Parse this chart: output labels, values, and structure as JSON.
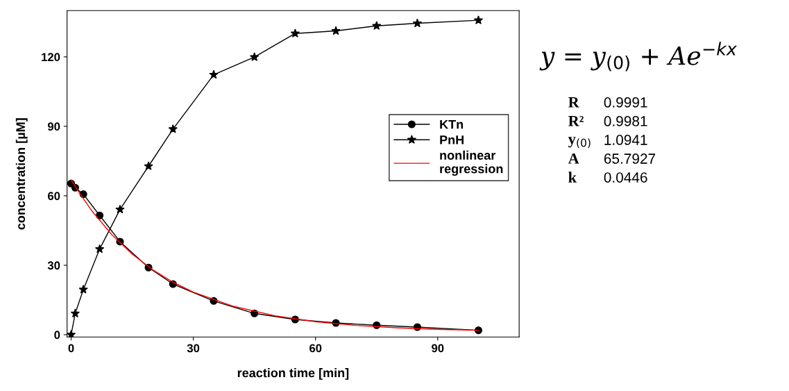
{
  "chart_data": {
    "type": "line",
    "xlabel": "reaction time [min]",
    "ylabel": "concentration [µM]",
    "xlim": [
      -1,
      110
    ],
    "xticks": [
      0,
      30,
      60,
      90
    ],
    "ylim": [
      -1,
      140
    ],
    "yticks": [
      0,
      30,
      60,
      90,
      120
    ],
    "grid": false,
    "legend": "right",
    "series": [
      {
        "name": "KTn",
        "color": "#000000",
        "marker": "circle",
        "x": [
          0,
          1,
          3,
          7,
          12,
          19,
          25,
          35,
          45,
          55,
          65,
          75,
          85,
          100
        ],
        "values": [
          65.3,
          63.5,
          60.7,
          51.5,
          40.2,
          29.0,
          21.9,
          14.6,
          9.2,
          6.6,
          5.1,
          4.1,
          3.3,
          1.9
        ]
      },
      {
        "name": "PnH",
        "color": "#000000",
        "marker": "star",
        "x": [
          0,
          1,
          3,
          7,
          12,
          19,
          25,
          35,
          45,
          55,
          65,
          75,
          85,
          100
        ],
        "values": [
          0.0,
          9.2,
          19.5,
          37.0,
          54.1,
          72.8,
          88.8,
          112.3,
          119.9,
          130.1,
          131.2,
          133.4,
          134.5,
          135.8
        ]
      },
      {
        "name": "nonlinear\nregression",
        "color": "#ff0000",
        "marker": "none",
        "x": [
          0,
          2,
          5,
          10,
          15,
          20,
          25,
          30,
          40,
          50,
          60,
          70,
          80,
          90,
          100
        ],
        "values": [
          66.9,
          61.3,
          53.7,
          43.2,
          34.8,
          28.1,
          22.7,
          18.4,
          12.2,
          8.2,
          5.6,
          4.0,
          3.0,
          2.3,
          1.9
        ]
      }
    ],
    "annotations": [
      "y = y$_{(0)}$ + Ae$^{−kx}$",
      "R",
      "0.9991",
      "R²",
      "0.9981",
      "y$_{(0)}$",
      "1.0941",
      "A",
      "65.7927",
      "k",
      "0.0446"
    ]
  }
}
